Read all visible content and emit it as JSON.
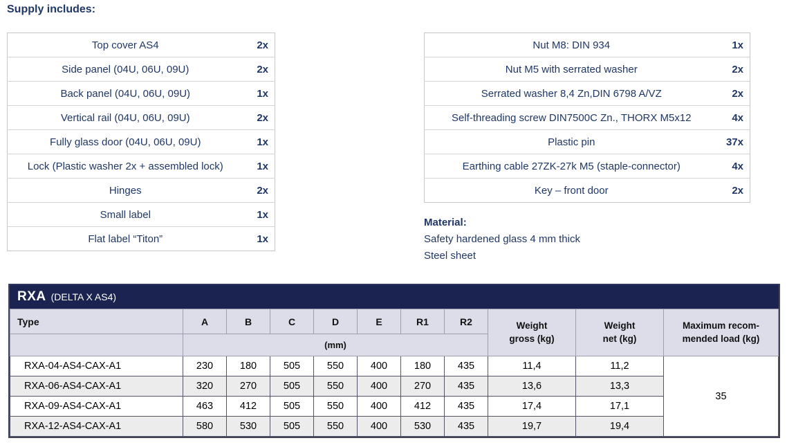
{
  "colors": {
    "navy_text": "#1f3766",
    "titlebar_bg": "#1b2450",
    "header_bg": "#dcdde8",
    "stripe_bg": "#ececec"
  },
  "supply": {
    "heading": "Supply includes:",
    "left": [
      {
        "item": "Top cover AS4",
        "qty": "2x"
      },
      {
        "item": "Side panel (04U, 06U, 09U)",
        "qty": "2x"
      },
      {
        "item": "Back panel (04U, 06U, 09U)",
        "qty": "1x"
      },
      {
        "item": "Vertical rail (04U, 06U, 09U)",
        "qty": "2x"
      },
      {
        "item": "Fully glass door (04U, 06U, 09U)",
        "qty": "1x"
      },
      {
        "item": "Lock (Plastic washer 2x + assembled lock)",
        "qty": "1x"
      },
      {
        "item": "Hinges",
        "qty": "2x"
      },
      {
        "item": "Small label",
        "qty": "1x"
      },
      {
        "item": "Flat label “Titon”",
        "qty": "1x"
      }
    ],
    "right": [
      {
        "item": "Nut M8: DIN 934",
        "qty": "1x"
      },
      {
        "item": "Nut M5 with serrated washer",
        "qty": "2x"
      },
      {
        "item": "Serrated washer 8,4 Zn,DIN 6798 A/VZ",
        "qty": "2x"
      },
      {
        "item": "Self-threading screw DIN7500C Zn., THORX M5x12",
        "qty": "4x"
      },
      {
        "item": "Plastic pin",
        "qty": "37x"
      },
      {
        "item": "Earthing cable 27ZK-27k M5 (staple-connector)",
        "qty": "4x"
      },
      {
        "item": "Key – front door",
        "qty": "2x"
      }
    ]
  },
  "material": {
    "heading": "Material:",
    "lines": [
      "Safety hardened glass 4 mm thick",
      "Steel sheet"
    ]
  },
  "rxa": {
    "title": "RXA",
    "subtitle": "(DELTA X AS4)",
    "type_header": "Type",
    "dim_headers": [
      "A",
      "B",
      "C",
      "D",
      "E",
      "R1",
      "R2"
    ],
    "unit_label": "(mm)",
    "weight_gross_header": [
      "Weight",
      "gross (kg)"
    ],
    "weight_net_header": [
      "Weight",
      "net (kg)"
    ],
    "max_load_header": [
      "Maximum recom-",
      "mended load (kg)"
    ],
    "rows": [
      {
        "type": "RXA-04-AS4-CAX-A1",
        "dims": [
          "230",
          "180",
          "505",
          "550",
          "400",
          "180",
          "435"
        ],
        "weight_gross": "11,4",
        "weight_net": "11,2"
      },
      {
        "type": "RXA-06-AS4-CAX-A1",
        "dims": [
          "320",
          "270",
          "505",
          "550",
          "400",
          "270",
          "435"
        ],
        "weight_gross": "13,6",
        "weight_net": "13,3"
      },
      {
        "type": "RXA-09-AS4-CAX-A1",
        "dims": [
          "463",
          "412",
          "505",
          "550",
          "400",
          "412",
          "435"
        ],
        "weight_gross": "17,4",
        "weight_net": "17,1"
      },
      {
        "type": "RXA-12-AS4-CAX-A1",
        "dims": [
          "580",
          "530",
          "505",
          "550",
          "400",
          "530",
          "435"
        ],
        "weight_gross": "19,7",
        "weight_net": "19,4"
      }
    ],
    "max_load_value": "35"
  }
}
